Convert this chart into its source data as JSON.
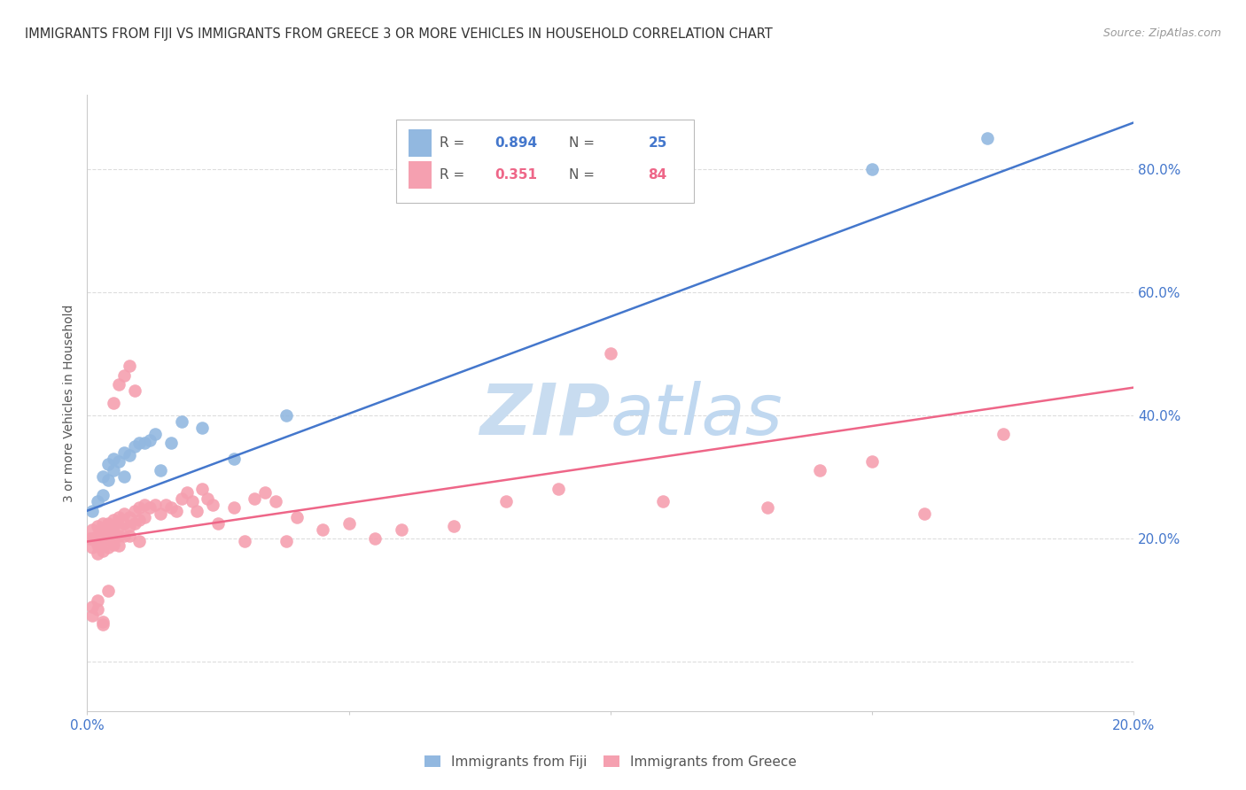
{
  "title": "IMMIGRANTS FROM FIJI VS IMMIGRANTS FROM GREECE 3 OR MORE VEHICLES IN HOUSEHOLD CORRELATION CHART",
  "source": "Source: ZipAtlas.com",
  "ylabel": "3 or more Vehicles in Household",
  "blue_R": 0.894,
  "blue_N": 25,
  "pink_R": 0.351,
  "pink_N": 84,
  "blue_color": "#92B8E0",
  "pink_color": "#F5A0B0",
  "blue_line_color": "#4477CC",
  "pink_line_color": "#EE6688",
  "watermark_zip": "ZIP",
  "watermark_atlas": "atlas",
  "watermark_color_zip": "#C8DCF0",
  "watermark_color_atlas": "#C0D8F0",
  "background_color": "#FFFFFF",
  "grid_color": "#DDDDDD",
  "xlim": [
    0.0,
    0.2
  ],
  "ylim": [
    -0.08,
    0.92
  ],
  "blue_line_x0": 0.0,
  "blue_line_y0": 0.245,
  "blue_line_x1": 0.2,
  "blue_line_y1": 0.875,
  "pink_line_x0": 0.0,
  "pink_line_y0": 0.195,
  "pink_line_x1": 0.2,
  "pink_line_y1": 0.445,
  "fiji_x": [
    0.001,
    0.002,
    0.003,
    0.003,
    0.004,
    0.004,
    0.005,
    0.005,
    0.006,
    0.007,
    0.007,
    0.008,
    0.009,
    0.01,
    0.011,
    0.012,
    0.013,
    0.014,
    0.016,
    0.018,
    0.022,
    0.028,
    0.038,
    0.15,
    0.172
  ],
  "fiji_y": [
    0.245,
    0.26,
    0.27,
    0.3,
    0.295,
    0.32,
    0.31,
    0.33,
    0.325,
    0.3,
    0.34,
    0.335,
    0.35,
    0.355,
    0.355,
    0.36,
    0.37,
    0.31,
    0.355,
    0.39,
    0.38,
    0.33,
    0.4,
    0.8,
    0.85
  ],
  "greece_x": [
    0.0005,
    0.001,
    0.001,
    0.001,
    0.002,
    0.002,
    0.002,
    0.002,
    0.003,
    0.003,
    0.003,
    0.003,
    0.004,
    0.004,
    0.004,
    0.004,
    0.005,
    0.005,
    0.005,
    0.005,
    0.006,
    0.006,
    0.006,
    0.006,
    0.007,
    0.007,
    0.007,
    0.008,
    0.008,
    0.008,
    0.009,
    0.009,
    0.01,
    0.01,
    0.011,
    0.011,
    0.012,
    0.013,
    0.014,
    0.015,
    0.016,
    0.017,
    0.018,
    0.019,
    0.02,
    0.021,
    0.022,
    0.023,
    0.024,
    0.025,
    0.028,
    0.03,
    0.032,
    0.034,
    0.036,
    0.038,
    0.04,
    0.045,
    0.05,
    0.055,
    0.06,
    0.07,
    0.08,
    0.09,
    0.1,
    0.11,
    0.13,
    0.14,
    0.15,
    0.16,
    0.175,
    0.001,
    0.001,
    0.002,
    0.002,
    0.003,
    0.003,
    0.004,
    0.005,
    0.006,
    0.007,
    0.008,
    0.009,
    0.01
  ],
  "greece_y": [
    0.2,
    0.215,
    0.2,
    0.185,
    0.22,
    0.205,
    0.19,
    0.175,
    0.225,
    0.21,
    0.195,
    0.18,
    0.225,
    0.21,
    0.2,
    0.185,
    0.22,
    0.23,
    0.205,
    0.19,
    0.235,
    0.22,
    0.205,
    0.188,
    0.24,
    0.225,
    0.205,
    0.235,
    0.22,
    0.205,
    0.245,
    0.225,
    0.25,
    0.23,
    0.255,
    0.235,
    0.25,
    0.255,
    0.24,
    0.255,
    0.25,
    0.245,
    0.265,
    0.275,
    0.26,
    0.245,
    0.28,
    0.265,
    0.255,
    0.225,
    0.25,
    0.195,
    0.265,
    0.275,
    0.26,
    0.195,
    0.235,
    0.215,
    0.225,
    0.2,
    0.215,
    0.22,
    0.26,
    0.28,
    0.5,
    0.26,
    0.25,
    0.31,
    0.325,
    0.24,
    0.37,
    0.09,
    0.075,
    0.1,
    0.085,
    0.065,
    0.06,
    0.115,
    0.42,
    0.45,
    0.465,
    0.48,
    0.44,
    0.195
  ]
}
